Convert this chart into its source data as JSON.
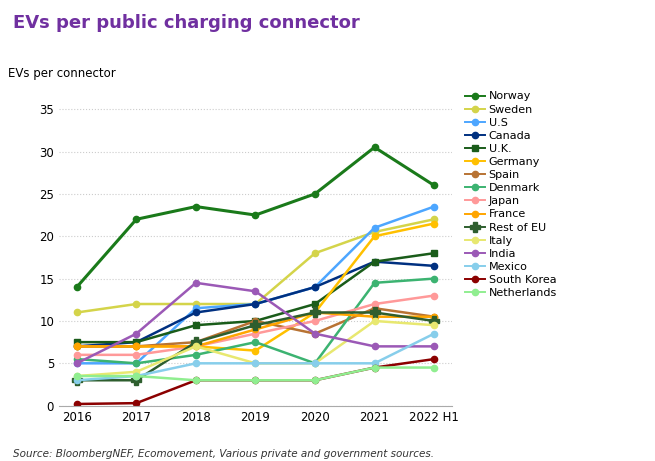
{
  "title": "EVs per public charging connector",
  "ylabel": "EVs per connector",
  "source": "Source: BloombergNEF, Ecomovement, Various private and government sources.",
  "years": [
    2016,
    2017,
    2018,
    2019,
    2020,
    2021,
    2022
  ],
  "year_labels": [
    "2016",
    "2017",
    "2018",
    "2019",
    "2020",
    "2021",
    "2022 H1"
  ],
  "ylim": [
    0,
    37
  ],
  "yticks": [
    0,
    5,
    10,
    15,
    20,
    25,
    30,
    35
  ],
  "series": [
    {
      "name": "Norway",
      "color": "#1a7a1a",
      "marker": "o",
      "linewidth": 2.2,
      "values": [
        14,
        22,
        23.5,
        22.5,
        25,
        30.5,
        26
      ]
    },
    {
      "name": "Sweden",
      "color": "#d4d44a",
      "marker": "o",
      "linewidth": 1.8,
      "values": [
        11,
        12,
        12,
        12,
        18,
        20.5,
        22
      ]
    },
    {
      "name": "U.S",
      "color": "#4da6ff",
      "marker": "o",
      "linewidth": 1.8,
      "values": [
        5,
        5,
        11.5,
        12,
        14,
        21,
        23.5
      ]
    },
    {
      "name": "Canada",
      "color": "#003080",
      "marker": "o",
      "linewidth": 1.8,
      "values": [
        7,
        7.5,
        11,
        12,
        14,
        17,
        16.5
      ]
    },
    {
      "name": "U.K.",
      "color": "#1a5c1a",
      "marker": "s",
      "linewidth": 1.8,
      "values": [
        7.5,
        7.5,
        9.5,
        10,
        12,
        17,
        18
      ]
    },
    {
      "name": "Germany",
      "color": "#ffc000",
      "marker": "o",
      "linewidth": 1.8,
      "values": [
        7,
        7,
        7,
        6.5,
        11,
        20,
        21.5
      ]
    },
    {
      "name": "Spain",
      "color": "#b87333",
      "marker": "o",
      "linewidth": 1.8,
      "values": [
        7,
        7,
        7.5,
        10,
        8.5,
        11.5,
        10.5
      ]
    },
    {
      "name": "Denmark",
      "color": "#3cb371",
      "marker": "o",
      "linewidth": 1.8,
      "values": [
        5.5,
        5,
        6,
        7.5,
        5,
        14.5,
        15
      ]
    },
    {
      "name": "Japan",
      "color": "#ff9999",
      "marker": "o",
      "linewidth": 1.8,
      "values": [
        6,
        6,
        7,
        8.5,
        10,
        12,
        13
      ]
    },
    {
      "name": "France",
      "color": "#ffa500",
      "marker": "o",
      "linewidth": 1.8,
      "values": [
        7,
        7,
        7,
        9,
        11,
        10.5,
        10.5
      ]
    },
    {
      "name": "Rest of EU",
      "color": "#2e5e2e",
      "marker": "P",
      "linewidth": 1.8,
      "values": [
        3,
        3,
        7.5,
        9.5,
        11,
        11,
        10
      ]
    },
    {
      "name": "Italy",
      "color": "#e8e870",
      "marker": "o",
      "linewidth": 1.8,
      "values": [
        3.5,
        4,
        7,
        5,
        5,
        10,
        9.5
      ]
    },
    {
      "name": "India",
      "color": "#9b59b6",
      "marker": "o",
      "linewidth": 1.8,
      "values": [
        5,
        8.5,
        14.5,
        13.5,
        8.5,
        7,
        7
      ]
    },
    {
      "name": "Mexico",
      "color": "#87ceeb",
      "marker": "o",
      "linewidth": 1.8,
      "values": [
        3,
        3.5,
        5,
        5,
        5,
        5,
        8.5
      ]
    },
    {
      "name": "South Korea",
      "color": "#8b0000",
      "marker": "o",
      "linewidth": 1.8,
      "values": [
        0.2,
        0.3,
        3,
        3,
        3,
        4.5,
        5.5
      ]
    },
    {
      "name": "Netherlands",
      "color": "#90ee90",
      "marker": "o",
      "linewidth": 1.8,
      "values": [
        3.5,
        3.5,
        3,
        3,
        3,
        4.5,
        4.5
      ]
    }
  ],
  "background_color": "#ffffff",
  "grid_color": "#cccccc",
  "title_color": "#7030a0",
  "title_fontsize": 13,
  "tick_fontsize": 8.5,
  "legend_fontsize": 8,
  "source_fontsize": 7.5
}
